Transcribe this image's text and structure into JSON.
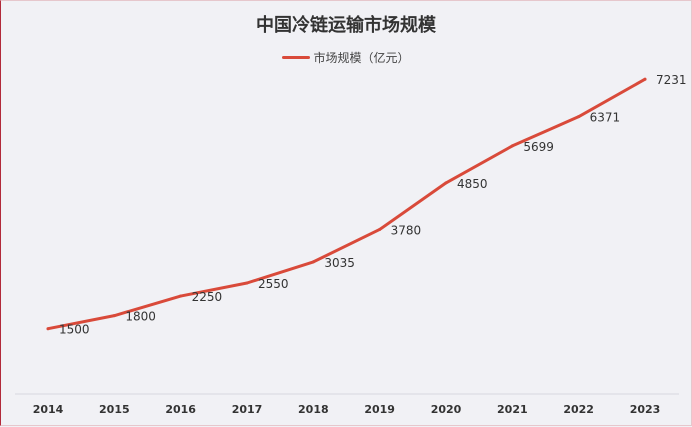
{
  "chart_data": {
    "type": "line",
    "title": "中国冷链运输市场规模",
    "categories": [
      "2014",
      "2015",
      "2016",
      "2017",
      "2018",
      "2019",
      "2020",
      "2021",
      "2022",
      "2023"
    ],
    "series": [
      {
        "name": "市场规模（亿元）",
        "values": [
          1500,
          1800,
          2250,
          2550,
          3035,
          3780,
          4850,
          5699,
          6371,
          7231
        ],
        "color": "#d94a3a"
      }
    ],
    "ylim": [
      0,
      8500
    ],
    "grid": false,
    "legend": "top-center"
  }
}
